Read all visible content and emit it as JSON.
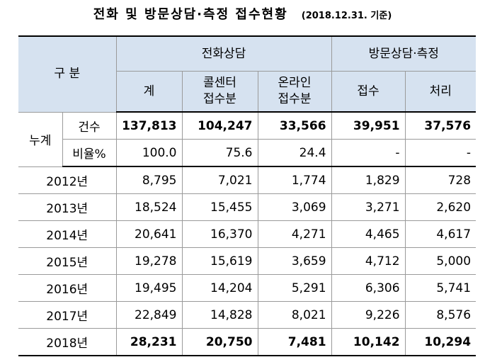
{
  "title": "전화 및 방문상담·측정 접수현황",
  "date_note": "(2018.12.31. 기준)",
  "header": {
    "category": "구 분",
    "phone_group": "전화상담",
    "visit_group": "방문상담·측정",
    "phone_total": "계",
    "phone_call_center_line1": "콜센터",
    "phone_call_center_line2": "접수분",
    "phone_online_line1": "온라인",
    "phone_online_line2": "접수분",
    "visit_receipt": "접수",
    "visit_processed": "처리"
  },
  "cumulative": {
    "label": "누계",
    "count_row": {
      "label": "건수",
      "values": [
        "137,813",
        "104,247",
        "33,566",
        "39,951",
        "37,576"
      ]
    },
    "ratio_row": {
      "label": "비율%",
      "values": [
        "100.0",
        "75.6",
        "24.4",
        "-",
        "-"
      ]
    }
  },
  "years": [
    {
      "label": "2012년",
      "values": [
        "8,795",
        "7,021",
        "1,774",
        "1,829",
        "728"
      ]
    },
    {
      "label": "2013년",
      "values": [
        "18,524",
        "15,455",
        "3,069",
        "3,271",
        "2,620"
      ]
    },
    {
      "label": "2014년",
      "values": [
        "20,641",
        "16,370",
        "4,271",
        "4,465",
        "4,617"
      ]
    },
    {
      "label": "2015년",
      "values": [
        "19,278",
        "15,619",
        "3,659",
        "4,712",
        "5,000"
      ]
    },
    {
      "label": "2016년",
      "values": [
        "19,495",
        "14,204",
        "5,291",
        "6,306",
        "5,741"
      ]
    },
    {
      "label": "2017년",
      "values": [
        "22,849",
        "14,828",
        "8,021",
        "9,226",
        "8,576"
      ]
    },
    {
      "label": "2018년",
      "values": [
        "28,231",
        "20,750",
        "7,481",
        "10,142",
        "10,294"
      ],
      "bold": true
    }
  ]
}
